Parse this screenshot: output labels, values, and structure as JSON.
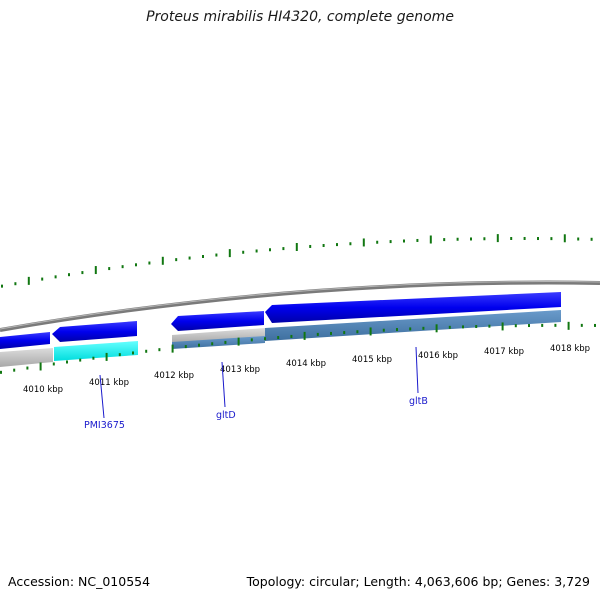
{
  "title": "Proteus mirabilis HI4320, complete genome",
  "footer": {
    "accession": "Accession: NC_010554",
    "summary": "Topology: circular; Length: 4,063,606 bp; Genes: 3,729"
  },
  "colors": {
    "backbone": "#808080",
    "cds_forward_dark": "#0000ee",
    "cds_selected_cyan": "#00ffff",
    "gene_grey": "#bfbfbf",
    "gene_steel": "#4f84b8",
    "tick_green": "#117711",
    "label_blue": "#1a1acc"
  },
  "ticks": [
    {
      "label": "4010 kbp"
    },
    {
      "label": "4011 kbp"
    },
    {
      "label": "4012 kbp"
    },
    {
      "label": "4013 kbp"
    },
    {
      "label": "4014 kbp"
    },
    {
      "label": "4015 kbp"
    },
    {
      "label": "4016 kbp"
    },
    {
      "label": "4017 kbp"
    },
    {
      "label": "4018 kbp"
    }
  ],
  "gene_labels": [
    {
      "name": "PMI3675"
    },
    {
      "name": "gltD"
    },
    {
      "name": "gltB"
    }
  ]
}
